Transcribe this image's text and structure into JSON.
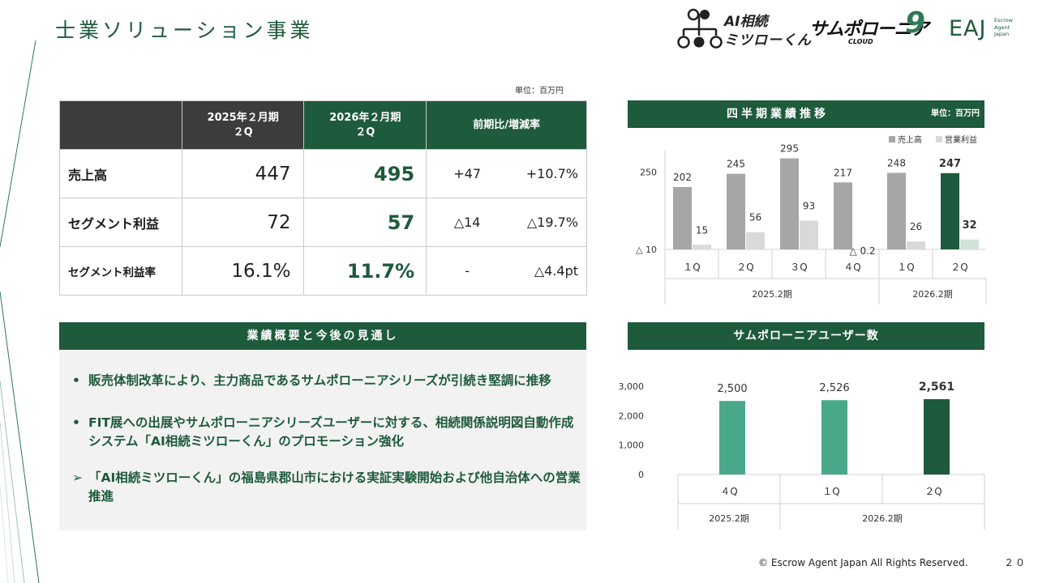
{
  "page": {
    "title": "士業ソリューション事業",
    "footer": "© Escrow Agent Japan All Rights Reserved.",
    "page_number": "２０"
  },
  "logos": {
    "sozoku_line1": "AI相続",
    "sozoku_line2": "ミツローくん",
    "samupo_main": "サムポローニア",
    "samupo_nine": "9",
    "samupo_sub": "CLOUD",
    "eaj_letters": "EAJ",
    "eaj_tag1": "Escrow",
    "eaj_tag2": "Agent",
    "eaj_tag3": "Japan"
  },
  "table": {
    "unit": "単位：百万円",
    "headers": {
      "prev_line1": "2025年２月期",
      "prev_line2": "２Q",
      "cur_line1": "2026年２月期",
      "cur_line2": "２Q",
      "diff": "前期比/増減率"
    },
    "rows": [
      {
        "label": "売上高",
        "prev": "447",
        "cur": "495",
        "diff_abs": "+47",
        "diff_rate": "+10.7%"
      },
      {
        "label": "セグメント利益",
        "prev": "72",
        "cur": "57",
        "diff_abs": "△14",
        "diff_rate": "△19.7%"
      },
      {
        "label": "セグメント利益率",
        "prev": "16.1%",
        "cur": "11.7%",
        "diff_abs": "-",
        "diff_rate": "△4.4pt"
      }
    ]
  },
  "summary": {
    "header": "業績概要と今後の見通し",
    "bullet_marker": "•",
    "arrow_marker": "➢",
    "items": [
      "販売体制改革により、主力商品であるサムポローニアシリーズが引続き堅調に推移",
      "FIT展への出展やサムポローニアシリーズユーザーに対する、相続関係説明図自動作成システム「AI相続ミツローくん」のプロモーション強化",
      "「AI相続ミツローくん」の福島県郡山市における実証実験開始および他自治体への営業推進"
    ]
  },
  "quarterly": {
    "header": "四半期業績推移",
    "unit": "単位：百万円"
  },
  "users": {
    "header": "サムポローニアユーザー数"
  },
  "chart_data": [
    {
      "type": "bar",
      "title": "四半期業績推移",
      "categories": [
        "１Q",
        "２Q",
        "３Q",
        "４Q",
        "１Q",
        "２Q"
      ],
      "groups": [
        {
          "label": "2025.2期",
          "count": 4
        },
        {
          "label": "2026.2期",
          "count": 2
        }
      ],
      "series": [
        {
          "name": "売上高",
          "values": [
            202,
            245,
            295,
            217,
            248,
            247
          ],
          "labels": [
            "202",
            "245",
            "295",
            "217",
            "248",
            "247"
          ]
        },
        {
          "name": "営業利益",
          "values": [
            15,
            56,
            93,
            -0.2,
            26,
            32
          ],
          "labels": [
            "15",
            "56",
            "93",
            "△ 0.2",
            "26",
            "32"
          ]
        }
      ],
      "y_ticks": [
        {
          "value": 250,
          "label": "250"
        },
        {
          "value": -10,
          "label": "△ 10"
        }
      ],
      "ylim": [
        -10,
        320
      ],
      "legend_position": "top-right",
      "colors": {
        "sales": "#a6a6a6",
        "profit": "#d9d9d9",
        "highlight_sales": "#1e5a3c",
        "highlight_profit": "#cfe3da"
      }
    },
    {
      "type": "bar",
      "title": "サムポローニアユーザー数",
      "categories": [
        "４Q",
        "１Q",
        "２Q"
      ],
      "groups": [
        {
          "label": "2025.2期",
          "count": 1
        },
        {
          "label": "2026.2期",
          "count": 2
        }
      ],
      "series": [
        {
          "name": "ユーザー数",
          "values": [
            2500,
            2526,
            2561
          ],
          "labels": [
            "2,500",
            "2,526",
            "2,561"
          ]
        }
      ],
      "y_ticks": [
        {
          "value": 0,
          "label": "0"
        },
        {
          "value": 1000,
          "label": "1,000"
        },
        {
          "value": 2000,
          "label": "2,000"
        },
        {
          "value": 3000,
          "label": "3,000"
        }
      ],
      "ylim": [
        0,
        3000
      ],
      "colors": {
        "bar": "#4aa88a",
        "highlight": "#1e5a3c"
      }
    }
  ]
}
